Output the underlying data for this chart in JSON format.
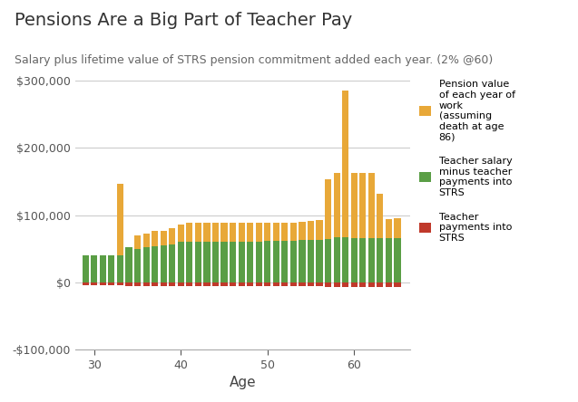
{
  "title": "Pensions Are a Big Part of Teacher Pay",
  "subtitle": "Salary plus lifetime value of STRS pension commitment added each year. (2% @60)",
  "xlabel": "Age",
  "ages": [
    29,
    30,
    31,
    32,
    33,
    34,
    35,
    36,
    37,
    38,
    39,
    40,
    41,
    42,
    43,
    44,
    45,
    46,
    47,
    48,
    49,
    50,
    51,
    52,
    53,
    54,
    55,
    56,
    57,
    58,
    59,
    60,
    61,
    62,
    63,
    64,
    65
  ],
  "pension_value": [
    0,
    0,
    0,
    0,
    106000,
    0,
    20000,
    20000,
    22000,
    22000,
    24000,
    26000,
    27000,
    27000,
    27000,
    27000,
    27000,
    27000,
    27000,
    27000,
    27000,
    27000,
    27000,
    27000,
    27000,
    27000,
    28000,
    30000,
    88000,
    96000,
    218000,
    97000,
    97000,
    97000,
    65000,
    28000,
    30000
  ],
  "salary_net": [
    40000,
    40000,
    40000,
    40000,
    40000,
    52000,
    50000,
    52000,
    54000,
    55000,
    57000,
    60000,
    61000,
    61000,
    61000,
    61000,
    61000,
    61000,
    61000,
    61000,
    61000,
    62000,
    62000,
    62000,
    62000,
    63000,
    63000,
    63000,
    65000,
    67000,
    67000,
    66000,
    66000,
    66000,
    66000,
    66000,
    66000
  ],
  "strs_payment": [
    -4000,
    -4000,
    -4000,
    -4000,
    -4000,
    -5000,
    -5000,
    -5200,
    -5200,
    -5200,
    -5500,
    -5800,
    -5800,
    -5800,
    -5800,
    -5800,
    -5800,
    -5800,
    -5800,
    -5800,
    -5800,
    -5800,
    -5800,
    -5800,
    -5800,
    -5800,
    -5800,
    -5800,
    -6200,
    -6200,
    -6200,
    -6200,
    -6200,
    -6200,
    -6200,
    -6200,
    -6200
  ],
  "pension_color": "#E8A838",
  "salary_color": "#5A9E45",
  "strs_color": "#C0392B",
  "background_color": "#FFFFFF",
  "grid_color": "#CCCCCC",
  "ylim": [
    -100000,
    300000
  ],
  "yticks": [
    -100000,
    0,
    100000,
    200000,
    300000
  ],
  "legend_labels": [
    "Pension value\nof each year of\nwork\n(assuming\ndeath at age\n86)",
    "Teacher salary\nminus teacher\npayments into\nSTRS",
    "Teacher\npayments into\nSTRS"
  ],
  "title_fontsize": 14,
  "subtitle_fontsize": 9,
  "tick_fontsize": 9,
  "xlabel_fontsize": 11
}
